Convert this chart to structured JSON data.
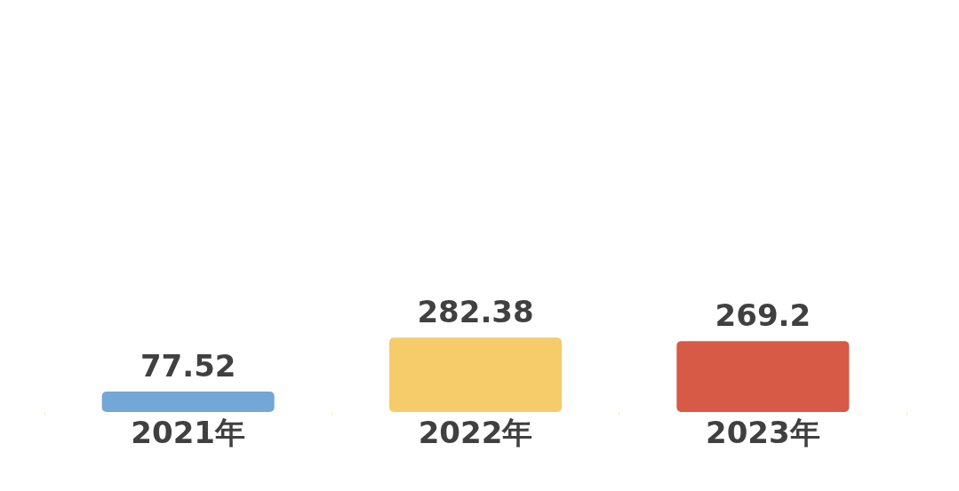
{
  "chart_data": {
    "type": "bar",
    "categories": [
      "2021年",
      "2022年",
      "2023年"
    ],
    "values": [
      77.52,
      282.38,
      269.2
    ],
    "colors": [
      "#72a7d6",
      "#f5cc69",
      "#d65a45"
    ],
    "data_labels": true
  }
}
